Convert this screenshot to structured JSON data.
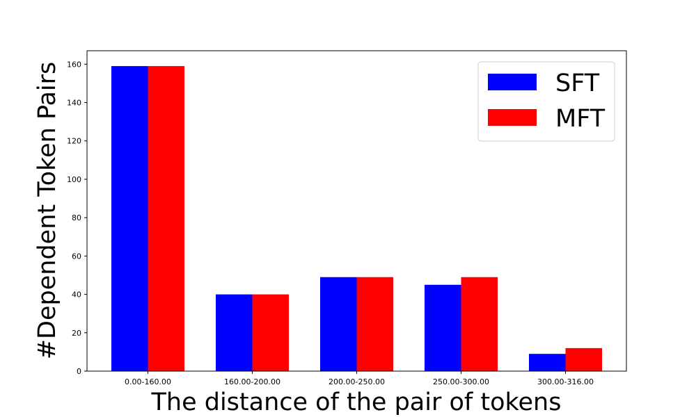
{
  "chart_data": {
    "type": "bar",
    "title": "",
    "xlabel": "The distance of the pair of tokens",
    "ylabel": "#Dependent Token Pairs",
    "categories": [
      "0.00-160.00",
      "160.00-200.00",
      "200.00-250.00",
      "250.00-300.00",
      "300.00-316.00"
    ],
    "series": [
      {
        "name": "SFT",
        "color": "#0000ff",
        "values": [
          159,
          40,
          49,
          45,
          9
        ]
      },
      {
        "name": "MFT",
        "color": "#ff0000",
        "values": [
          159,
          40,
          49,
          49,
          12
        ]
      }
    ],
    "ylim": [
      0,
      167
    ],
    "yticks": [
      0,
      20,
      40,
      60,
      80,
      100,
      120,
      140,
      160
    ],
    "legend_position": "top-right",
    "grid": false
  }
}
